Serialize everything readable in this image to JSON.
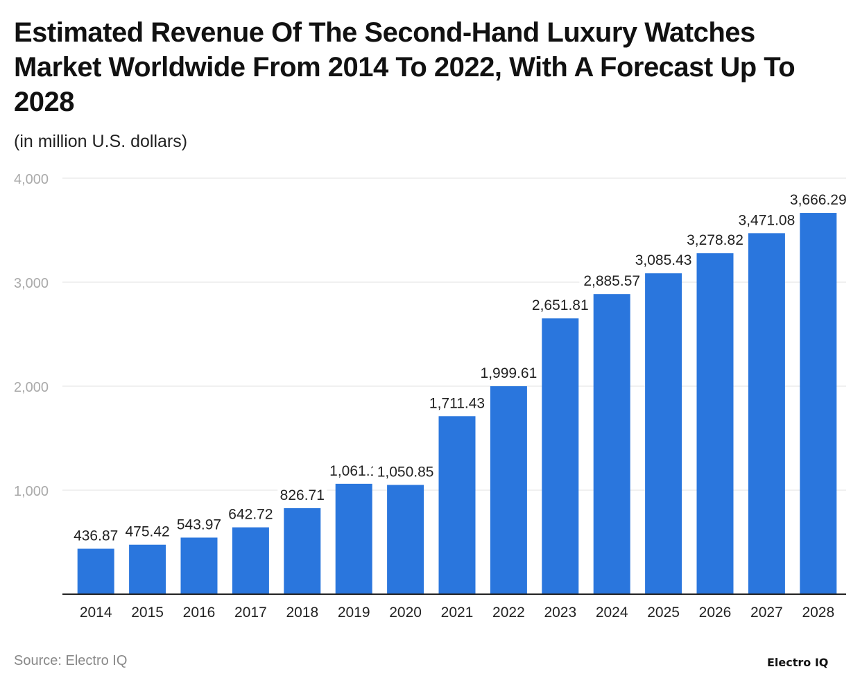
{
  "chart_data": {
    "type": "bar",
    "title": "Estimated Revenue Of The Second-Hand Luxury Watches Market Worldwide From 2014 To 2022, With A Forecast Up To 2028",
    "subtitle": "(in million U.S. dollars)",
    "xlabel": "",
    "ylabel": "",
    "categories": [
      "2014",
      "2015",
      "2016",
      "2017",
      "2018",
      "2019",
      "2020",
      "2021",
      "2022",
      "2023",
      "2024",
      "2025",
      "2026",
      "2027",
      "2028"
    ],
    "values": [
      436.87,
      475.42,
      543.97,
      642.72,
      826.71,
      1061.1,
      1050.85,
      1711.43,
      1999.61,
      2651.81,
      2885.57,
      3085.43,
      3278.82,
      3471.08,
      3666.29
    ],
    "data_labels": [
      "436.87",
      "475.42",
      "543.97",
      "642.72",
      "826.71",
      "1,061.1",
      "1,050.85",
      "1,711.43",
      "1,999.61",
      "2,651.81",
      "2,885.57",
      "3,085.43",
      "3,278.82",
      "3,471.08",
      "3,666.29"
    ],
    "ylim": [
      0,
      4000
    ],
    "yticks": [
      1000,
      2000,
      3000,
      4000
    ],
    "ytick_labels": [
      "1,000",
      "2,000",
      "3,000",
      "4,000"
    ],
    "grid": true,
    "bar_color": "#2a76dd"
  },
  "source": "Source: Electro IQ",
  "logo": "Electro IQ"
}
